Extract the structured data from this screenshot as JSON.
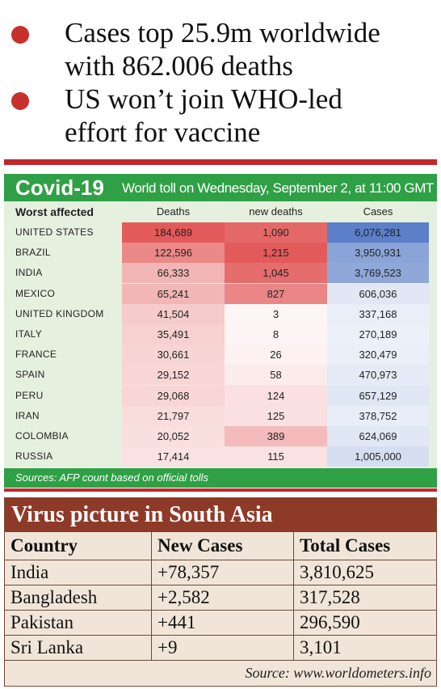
{
  "headlines": [
    {
      "lines": [
        "Cases top 25.9m worldwide",
        "with 862.006 deaths"
      ]
    },
    {
      "lines": [
        "US won’t join WHO-led",
        "effort for vaccine"
      ]
    }
  ],
  "covid": {
    "title": "Covid-19",
    "subtitle": "World toll on Wednesday, September 2, at 11:00 GMT",
    "row_header": "Worst affected",
    "columns": [
      "Deaths",
      "new deaths",
      "Cases"
    ],
    "rows": [
      {
        "country": "UNITED STATES",
        "deaths": "184,689",
        "new_deaths": "1,090",
        "cases": "6,076,281"
      },
      {
        "country": "BRAZIL",
        "deaths": "122,596",
        "new_deaths": "1,215",
        "cases": "3,950,931"
      },
      {
        "country": "INDIA",
        "deaths": "66,333",
        "new_deaths": "1,045",
        "cases": "3,769,523"
      },
      {
        "country": "MEXICO",
        "deaths": "65,241",
        "new_deaths": "827",
        "cases": "606,036"
      },
      {
        "country": "UNITED KINGDOM",
        "deaths": "41,504",
        "new_deaths": "3",
        "cases": "337,168"
      },
      {
        "country": "ITALY",
        "deaths": "35,491",
        "new_deaths": "8",
        "cases": "270,189"
      },
      {
        "country": "FRANCE",
        "deaths": "30,661",
        "new_deaths": "26",
        "cases": "320,479"
      },
      {
        "country": "SPAIN",
        "deaths": "29,152",
        "new_deaths": "58",
        "cases": "470,973"
      },
      {
        "country": "PERU",
        "deaths": "29,068",
        "new_deaths": "124",
        "cases": "657,129"
      },
      {
        "country": "IRAN",
        "deaths": "21,797",
        "new_deaths": "125",
        "cases": "378,752"
      },
      {
        "country": "COLOMBIA",
        "deaths": "20,052",
        "new_deaths": "389",
        "cases": "624,069"
      },
      {
        "country": "RUSSIA",
        "deaths": "17,414",
        "new_deaths": "115",
        "cases": "1,005,000"
      }
    ],
    "source": "Sources: AFP count based on official tolls",
    "colors": {
      "header_green": "#2fa046",
      "panel_bg": "#e6f0df",
      "heat_red": "#e35a5a",
      "heat_blue": "#5b7fc8"
    }
  },
  "south_asia": {
    "title": "Virus picture in South Asia",
    "columns": [
      "Country",
      "New Cases",
      "Total Cases"
    ],
    "rows": [
      {
        "country": "India",
        "new_cases": "+78,357",
        "total_cases": "3,810,625"
      },
      {
        "country": "Bangladesh",
        "new_cases": "+2,582",
        "total_cases": "317,528"
      },
      {
        "country": "Pakistan",
        "new_cases": "+441",
        "total_cases": "296,590"
      },
      {
        "country": "Sri Lanka",
        "new_cases": "+9",
        "total_cases": "3,101"
      }
    ],
    "source": "Source: www.worldometers.info",
    "colors": {
      "title_bg": "#8e3a28",
      "table_bg": "#f0e5d8"
    }
  }
}
